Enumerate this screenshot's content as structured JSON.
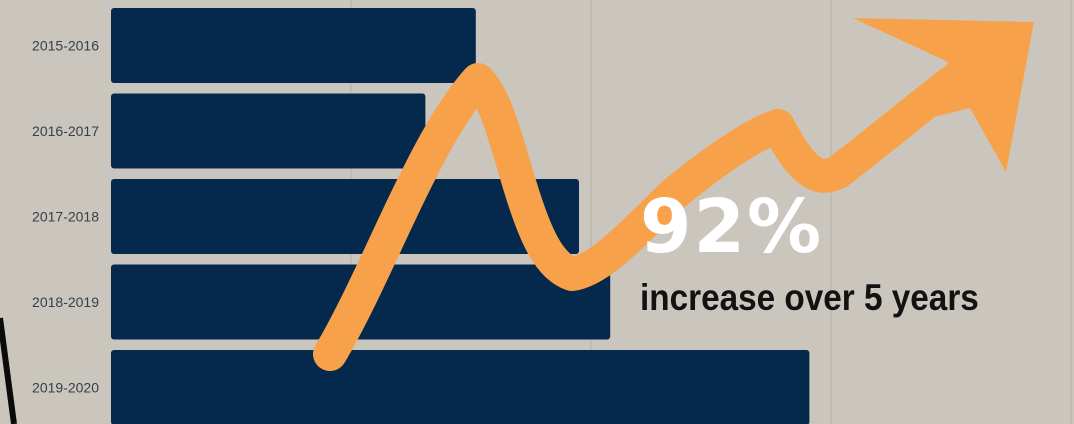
{
  "chart_data": {
    "type": "bar",
    "orientation": "horizontal",
    "categories": [
      "2015-2016",
      "2016-2017",
      "2017-2018",
      "2018-2019",
      "2019-2020"
    ],
    "values": [
      152,
      131,
      195,
      208,
      291
    ],
    "xlim": [
      0,
      400
    ],
    "grid": true,
    "bar_color": "#04294c",
    "annotation": {
      "value": "92%",
      "text": "increase over 5 years",
      "arrow_color": "#f7a24b"
    }
  }
}
